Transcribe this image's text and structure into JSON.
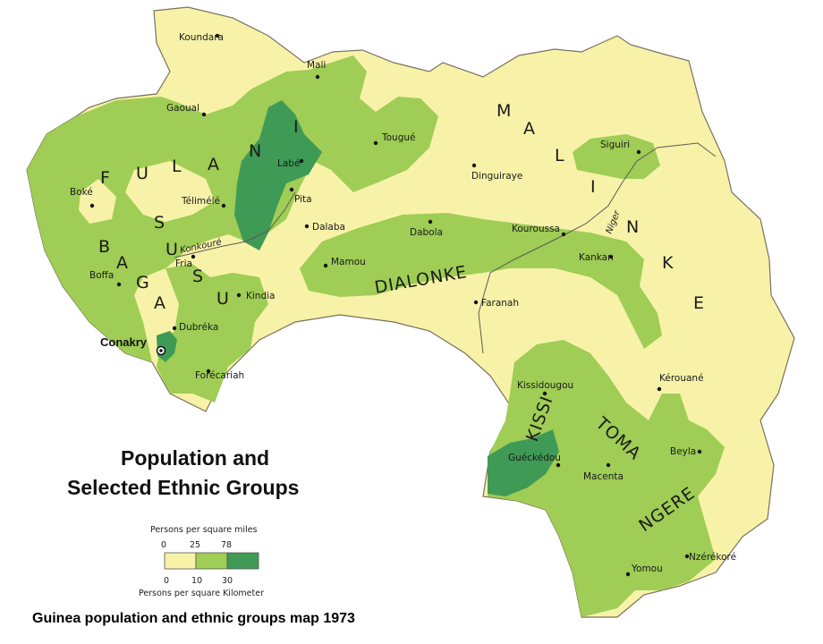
{
  "title": [
    "Population and",
    "Selected Ethnic Groups"
  ],
  "caption": "Guinea population and ethnic groups map 1973",
  "colors": {
    "low_density": "#f8f2a8",
    "medium_density": "#9fcd55",
    "high_density": "#3f9a56",
    "background": "#ffffff",
    "border": "#7a7060"
  },
  "legend": {
    "heading_miles": "Persons per square miles",
    "miles_ticks": [
      "0",
      "25",
      "78"
    ],
    "km_ticks": [
      "0",
      "10",
      "30"
    ],
    "heading_km": "Persons per square Kilometer"
  },
  "capital": {
    "name": "Conakry"
  },
  "cities": [
    {
      "name": "Koundara"
    },
    {
      "name": "Mali"
    },
    {
      "name": "Gaoual"
    },
    {
      "name": "Tougué"
    },
    {
      "name": "Labé"
    },
    {
      "name": "Boké"
    },
    {
      "name": "Télimélé"
    },
    {
      "name": "Pita"
    },
    {
      "name": "Dalaba"
    },
    {
      "name": "Dinguiraye"
    },
    {
      "name": "Siguiri"
    },
    {
      "name": "Fria"
    },
    {
      "name": "Boffa"
    },
    {
      "name": "Kindia"
    },
    {
      "name": "Dubréka"
    },
    {
      "name": "Forécariah"
    },
    {
      "name": "Mamou"
    },
    {
      "name": "Dabola"
    },
    {
      "name": "Kouroussa"
    },
    {
      "name": "Kankan"
    },
    {
      "name": "Faranah"
    },
    {
      "name": "Kissidougou"
    },
    {
      "name": "Kérouané"
    },
    {
      "name": "Guéckédou"
    },
    {
      "name": "Macenta"
    },
    {
      "name": "Beyla"
    },
    {
      "name": "Yomou"
    },
    {
      "name": "Nzérékoré"
    }
  ],
  "ethnic_groups": {
    "fulani": [
      "F",
      "U",
      "L",
      "A",
      "N",
      "I"
    ],
    "susu": [
      "S",
      "U",
      "S",
      "U"
    ],
    "baga": [
      "B",
      "A",
      "G",
      "A"
    ],
    "malinke": [
      "M",
      "A",
      "L",
      "I",
      "N",
      "K",
      "E"
    ],
    "dialonke": "DIALONKE",
    "kissi": "KISSI",
    "toma": "TOMA",
    "ngere": "NGERE"
  },
  "rivers": [
    "Konkouré",
    "Niger"
  ]
}
